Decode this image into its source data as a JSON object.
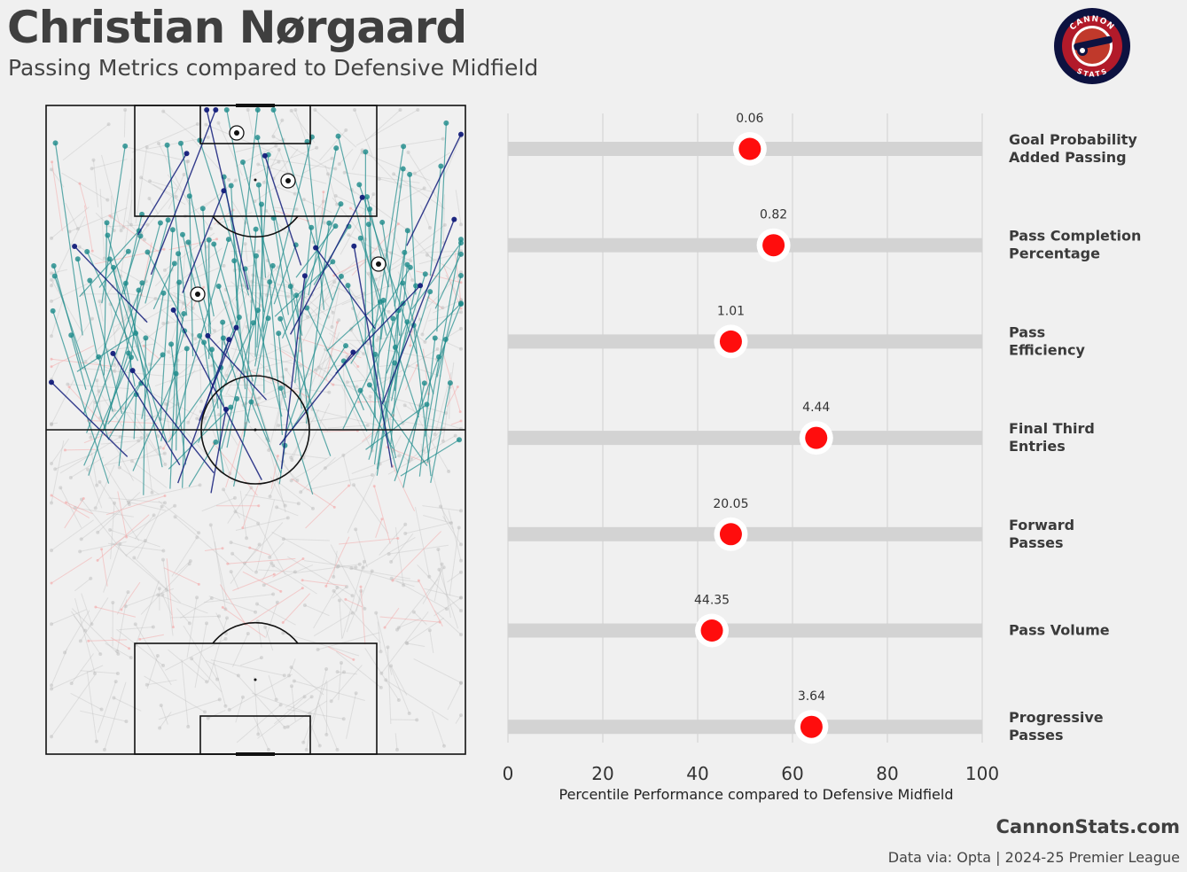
{
  "header": {
    "title": "Christian Nørgaard",
    "subtitle": "Passing Metrics compared to Defensive Midfield"
  },
  "logo": {
    "top_text": "CANNON",
    "bottom_text": "STATS"
  },
  "colors": {
    "background": "#f0f0f0",
    "bar": "#d3d3d3",
    "dot": "#ff0d0d",
    "pass_teal": "#1b8a8a",
    "pass_navy": "#121c7a",
    "pass_grey": "#b9b9b9",
    "pass_red": "#f3a6a6"
  },
  "chart_data": {
    "type": "dot",
    "title": "Christian Nørgaard",
    "subtitle": "Passing Metrics compared to Defensive Midfield",
    "xlabel": "Percentile Performance compared to Defensive Midfield",
    "xlim": [
      0,
      100
    ],
    "xticks": [
      0,
      20,
      40,
      60,
      80,
      100
    ],
    "grid": true,
    "metrics": [
      {
        "label_lines": [
          "Goal Probability",
          "Added Passing"
        ],
        "percentile": 51,
        "value_label": "0.06"
      },
      {
        "label_lines": [
          "Pass Completion",
          "Percentage"
        ],
        "percentile": 56,
        "value_label": "0.82"
      },
      {
        "label_lines": [
          "Pass",
          "Efficiency"
        ],
        "percentile": 47,
        "value_label": "1.01"
      },
      {
        "label_lines": [
          "Final Third",
          "Entries"
        ],
        "percentile": 65,
        "value_label": "4.44"
      },
      {
        "label_lines": [
          "Forward",
          "Passes"
        ],
        "percentile": 47,
        "value_label": "20.05"
      },
      {
        "label_lines": [
          "Pass Volume"
        ],
        "percentile": 43,
        "value_label": "44.35"
      },
      {
        "label_lines": [
          "Progressive",
          "Passes"
        ],
        "percentile": 64,
        "value_label": "3.64"
      }
    ]
  },
  "footer": {
    "brand": "CannonStats.com",
    "source": "Data via: Opta | 2024-25 Premier League"
  }
}
